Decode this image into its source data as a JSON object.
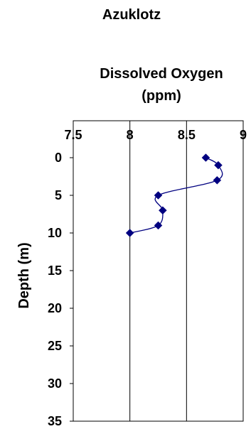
{
  "chart_data": {
    "type": "scatter",
    "title": "Azuklotz",
    "xlabel": "Dissolved Oxygen (ppm)",
    "xlabel_lines": [
      "Dissolved Oxygen",
      "(ppm)"
    ],
    "ylabel": "Depth (m)",
    "x_axis_position": "top",
    "y_axis_inverted": true,
    "xlim": [
      7.5,
      9
    ],
    "ylim": [
      0,
      35
    ],
    "x_ticks": [
      "7.5",
      "8",
      "8.5",
      "9"
    ],
    "y_ticks": [
      "0",
      "5",
      "10",
      "15",
      "20",
      "25",
      "30",
      "35"
    ],
    "grid": "vertical",
    "line": "smoothed",
    "series": [
      {
        "color": "#000080",
        "marker": "diamond",
        "points": [
          {
            "x": 8.67,
            "y": 0
          },
          {
            "x": 8.78,
            "y": 1
          },
          {
            "x": 8.77,
            "y": 3
          },
          {
            "x": 8.25,
            "y": 5
          },
          {
            "x": 8.29,
            "y": 7
          },
          {
            "x": 8.25,
            "y": 9
          },
          {
            "x": 8.0,
            "y": 10
          }
        ]
      }
    ]
  }
}
